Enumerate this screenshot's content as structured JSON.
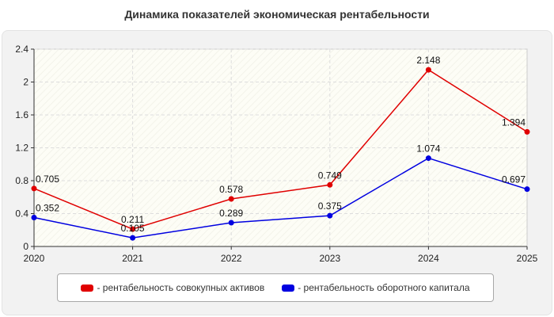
{
  "chart_data": {
    "type": "line",
    "title": "Динамика показателей экономическая рентабельности",
    "categories": [
      "2020",
      "2021",
      "2022",
      "2023",
      "2024",
      "2025"
    ],
    "ylim": [
      0,
      2.4
    ],
    "yticks": [
      "0",
      "0.4",
      "0.8",
      "1.2",
      "1.6",
      "2",
      "2.4"
    ],
    "grid": true,
    "legend_position": "bottom",
    "series": [
      {
        "name": "- рентабельность совокупных активов",
        "color": "#e00000",
        "values": [
          0.705,
          0.211,
          0.578,
          0.749,
          2.148,
          1.394
        ],
        "labels": [
          "0.705",
          "0.211",
          "0.578",
          "0.749",
          "2.148",
          "1.394"
        ]
      },
      {
        "name": "- рентабельность оборотного капитала",
        "color": "#0000e0",
        "values": [
          0.352,
          0.105,
          0.289,
          0.375,
          1.074,
          0.697
        ],
        "labels": [
          "0.352",
          "0.105",
          "0.289",
          "0.375",
          "1.074",
          "0.697"
        ]
      }
    ]
  }
}
